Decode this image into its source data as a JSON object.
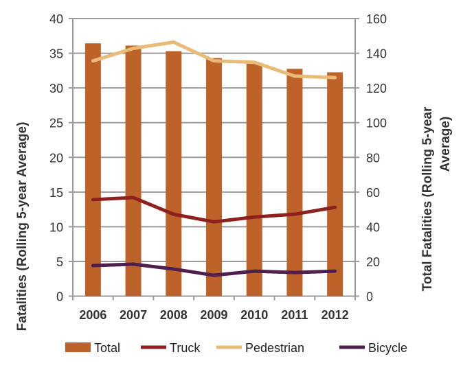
{
  "chart_data": {
    "type": "bar+line",
    "categories": [
      "2006",
      "2007",
      "2008",
      "2009",
      "2010",
      "2011",
      "2012"
    ],
    "series": [
      {
        "name": "Total",
        "type": "bar",
        "axis": "right",
        "color": "#bd6228",
        "values": [
          145.7,
          144.4,
          141.2,
          137.2,
          134.4,
          131,
          129
        ]
      },
      {
        "name": "Truck",
        "type": "line",
        "axis": "left",
        "color": "#8f2020",
        "values": [
          13.9,
          14.2,
          11.8,
          10.7,
          11.4,
          11.8,
          12.8
        ]
      },
      {
        "name": "Pedestrian",
        "type": "line",
        "axis": "left",
        "color": "#e8bb78",
        "values": [
          33.9,
          35.7,
          36.6,
          33.9,
          33.7,
          31.7,
          31.5
        ]
      },
      {
        "name": "Bicycle",
        "type": "line",
        "axis": "left",
        "color": "#4f1f50",
        "values": [
          4.4,
          4.6,
          3.9,
          3.0,
          3.6,
          3.4,
          3.6
        ]
      }
    ],
    "ylabel": "Fatalities (Rolling  5-year Average)",
    "y2label": [
      "Total Fatalities (Rolling 5-year",
      "Average)"
    ],
    "ylim": [
      0,
      40
    ],
    "y2lim": [
      0,
      160
    ],
    "yticks": [
      "0",
      "5",
      "10",
      "15",
      "20",
      "25",
      "30",
      "35",
      "40"
    ],
    "y2ticks": [
      "0",
      "20",
      "40",
      "60",
      "80",
      "100",
      "120",
      "140",
      "160"
    ],
    "grid": true,
    "legend": "bottom"
  }
}
